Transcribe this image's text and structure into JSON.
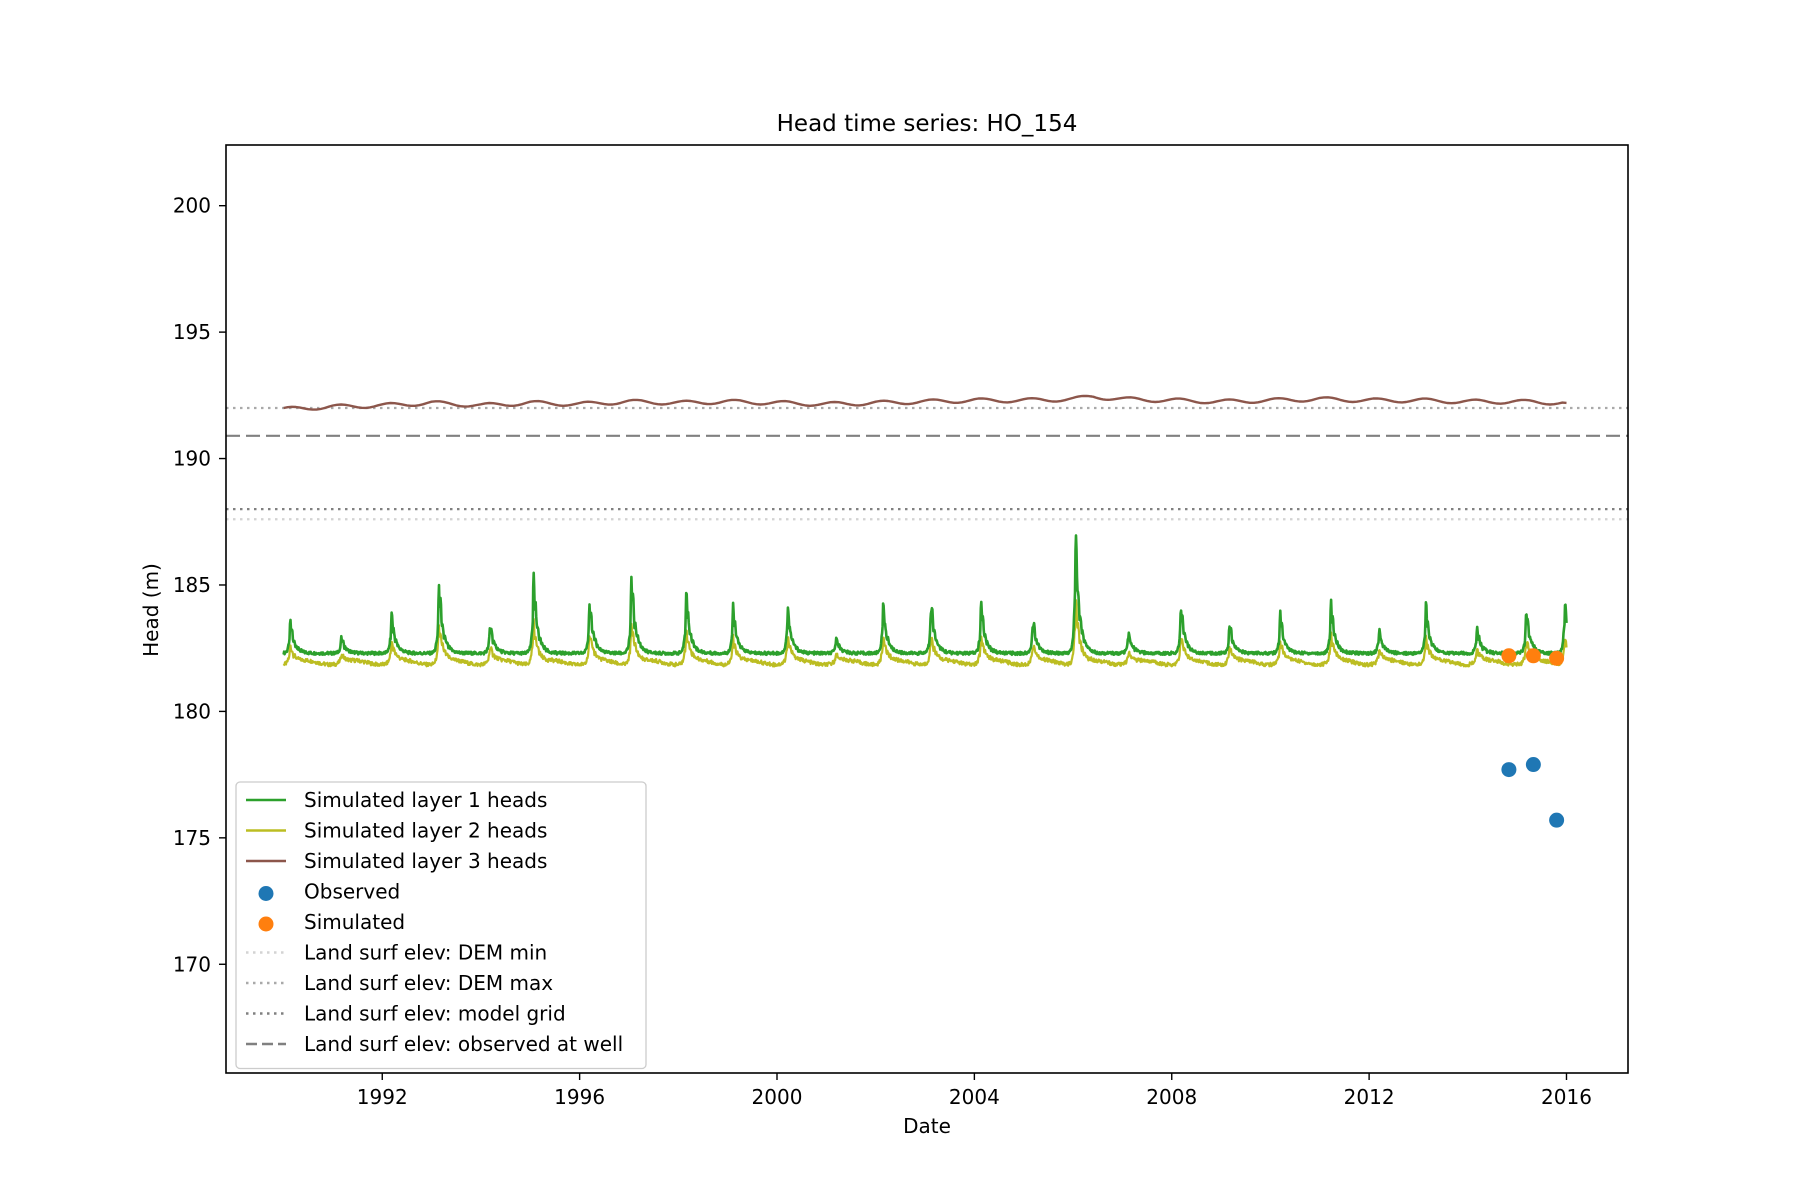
{
  "chart_data": {
    "type": "line",
    "title": "Head time series: HO_154",
    "xlabel": "Date",
    "ylabel": "Head (m)",
    "xlim": [
      "1988-11-01",
      "2017-04-01"
    ],
    "ylim": [
      165.7,
      202.4
    ],
    "xticks": [
      {
        "date": "1992-01-01",
        "label": "1992"
      },
      {
        "date": "1996-01-01",
        "label": "1996"
      },
      {
        "date": "2000-01-01",
        "label": "2000"
      },
      {
        "date": "2004-01-01",
        "label": "2004"
      },
      {
        "date": "2008-01-01",
        "label": "2008"
      },
      {
        "date": "2012-01-01",
        "label": "2012"
      },
      {
        "date": "2016-01-01",
        "label": "2016"
      }
    ],
    "yticks": [
      170,
      175,
      180,
      185,
      190,
      195,
      200
    ],
    "grid": false,
    "legend_position": "lower-left",
    "series": [
      {
        "name": "Simulated layer 1 heads",
        "kind": "line",
        "color": "#2ca02c",
        "baseline": 182.3,
        "x": [
          "1990-01-01",
          "2016-01-01"
        ],
        "annual_peaks": [
          {
            "date": "1990-02-20",
            "y": 183.7
          },
          {
            "date": "1991-03-05",
            "y": 183.0
          },
          {
            "date": "1992-03-10",
            "y": 184.0
          },
          {
            "date": "1993-02-25",
            "y": 185.3
          },
          {
            "date": "1994-03-10",
            "y": 183.6
          },
          {
            "date": "1995-01-25",
            "y": 185.6
          },
          {
            "date": "1996-03-15",
            "y": 184.6
          },
          {
            "date": "1997-01-20",
            "y": 185.6
          },
          {
            "date": "1998-03-01",
            "y": 184.9
          },
          {
            "date": "1999-02-10",
            "y": 184.3
          },
          {
            "date": "2000-03-20",
            "y": 184.3
          },
          {
            "date": "2001-03-15",
            "y": 183.0
          },
          {
            "date": "2002-02-25",
            "y": 184.4
          },
          {
            "date": "2003-02-15",
            "y": 184.6
          },
          {
            "date": "2004-02-20",
            "y": 184.5
          },
          {
            "date": "2005-03-10",
            "y": 183.8
          },
          {
            "date": "2006-01-20",
            "y": 187.4
          },
          {
            "date": "2007-02-15",
            "y": 183.2
          },
          {
            "date": "2008-03-10",
            "y": 184.4
          },
          {
            "date": "2009-03-05",
            "y": 183.6
          },
          {
            "date": "2010-03-15",
            "y": 184.0
          },
          {
            "date": "2011-03-25",
            "y": 184.5
          },
          {
            "date": "2012-03-15",
            "y": 183.3
          },
          {
            "date": "2013-02-25",
            "y": 184.4
          },
          {
            "date": "2014-03-10",
            "y": 183.4
          },
          {
            "date": "2015-03-10",
            "y": 184.2
          },
          {
            "date": "2015-12-20",
            "y": 184.5
          }
        ]
      },
      {
        "name": "Simulated layer 2 heads",
        "kind": "line",
        "color": "#bcbd22",
        "baseline": 182.0
      },
      {
        "name": "Simulated layer 3 heads",
        "kind": "line",
        "color": "#8c564b",
        "x": [
          "1990-01-01",
          "1991-01-01",
          "1992-01-01",
          "1993-01-01",
          "1994-01-01",
          "1995-01-01",
          "1996-01-01",
          "1997-01-01",
          "1998-01-01",
          "1999-01-01",
          "2000-01-01",
          "2001-01-01",
          "2002-01-01",
          "2003-01-01",
          "2004-01-01",
          "2005-01-01",
          "2006-01-01",
          "2006-06-01",
          "2007-01-01",
          "2008-01-01",
          "2009-01-01",
          "2010-01-01",
          "2011-01-01",
          "2012-01-01",
          "2013-01-01",
          "2014-01-01",
          "2015-01-01",
          "2016-01-01"
        ],
        "y": [
          191.95,
          192.05,
          192.1,
          192.2,
          192.1,
          192.2,
          192.15,
          192.25,
          192.2,
          192.25,
          192.2,
          192.15,
          192.2,
          192.25,
          192.3,
          192.3,
          192.35,
          192.45,
          192.35,
          192.3,
          192.25,
          192.3,
          192.35,
          192.3,
          192.3,
          192.25,
          192.25,
          192.2
        ]
      },
      {
        "name": "Observed",
        "kind": "scatter",
        "color": "#1f77b4",
        "x": [
          "2014-11-01",
          "2015-05-01",
          "2015-10-20"
        ],
        "y": [
          177.7,
          177.9,
          175.7
        ]
      },
      {
        "name": "Simulated",
        "kind": "scatter",
        "color": "#ff7f0e",
        "x": [
          "2014-11-01",
          "2015-05-01",
          "2015-10-20"
        ],
        "y": [
          182.2,
          182.2,
          182.1
        ]
      },
      {
        "name": "Land surf elev: DEM min",
        "kind": "hline",
        "style": "dotted",
        "color": "#d3d3d3",
        "y": 187.6
      },
      {
        "name": "Land surf elev: DEM max",
        "kind": "hline",
        "style": "dotted",
        "color": "#a9a9a9",
        "y": 192.0
      },
      {
        "name": "Land surf elev: model grid",
        "kind": "hline",
        "style": "dotted",
        "color": "#808080",
        "y": 188.0
      },
      {
        "name": "Land surf elev: observed at well",
        "kind": "hline",
        "style": "dashed",
        "color": "#808080",
        "y": 190.9
      }
    ]
  }
}
